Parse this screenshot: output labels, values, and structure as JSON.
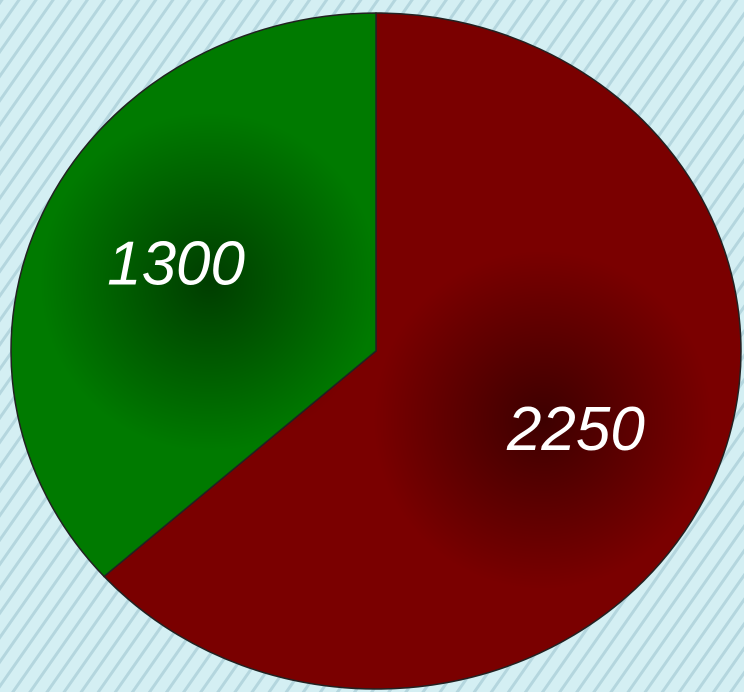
{
  "chart_data": {
    "type": "pie",
    "values": [
      2250,
      1300
    ],
    "colors": [
      "#7a0000",
      "#007a00"
    ],
    "start_angle": 0,
    "direction": "clockwise"
  }
}
